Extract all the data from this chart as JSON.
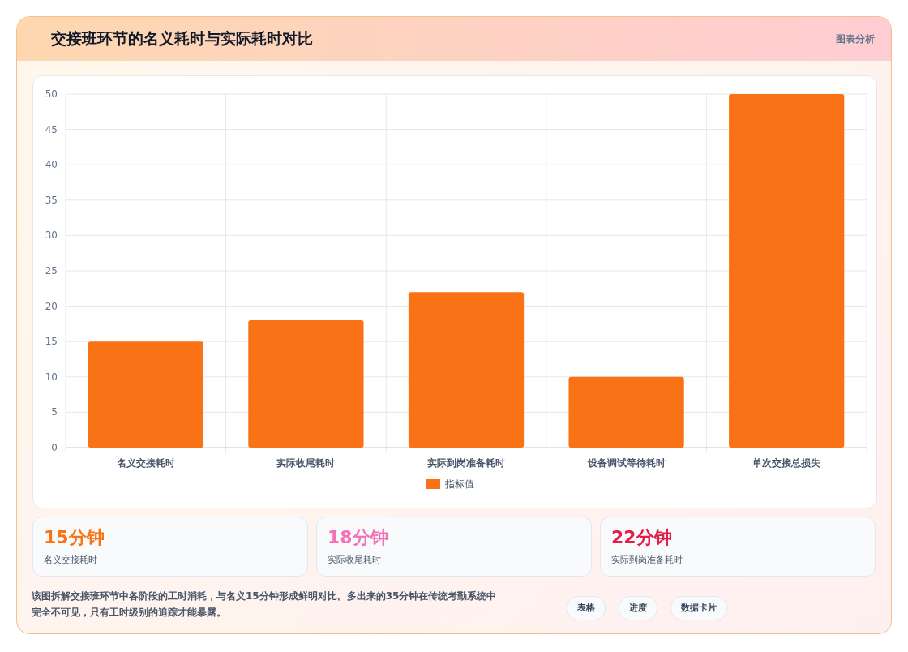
{
  "chart_data": {
    "type": "bar",
    "title": "交接班环节的名义耗时与实际耗时对比",
    "categories": [
      "名义交接耗时",
      "实际收尾耗时",
      "实际到岗准备耗时",
      "设备调试等待耗时",
      "单次交接总损失"
    ],
    "series": [
      {
        "name": "指标值",
        "color": "#f97316",
        "values": [
          15,
          18,
          22,
          10,
          50
        ]
      }
    ],
    "ylim": [
      0,
      50
    ],
    "yticks": [
      0,
      5,
      10,
      15,
      20,
      25,
      30,
      35,
      40,
      45,
      50
    ],
    "grid": true,
    "legend": "bottom",
    "annotations": [
      "图表分析",
      "15分钟",
      "名义交接耗时",
      "18分钟",
      "实际收尾耗时",
      "22分钟",
      "实际到岗准备耗时",
      "该图拆解交接班环节中各阶段的工时消耗，与名义15分钟形成鲜明对比。多出来的35分钟在传统考勤系统中完全不可见，只有工时级别的追踪才能暴露。",
      "表格",
      "进度",
      "数据卡片"
    ]
  }
}
